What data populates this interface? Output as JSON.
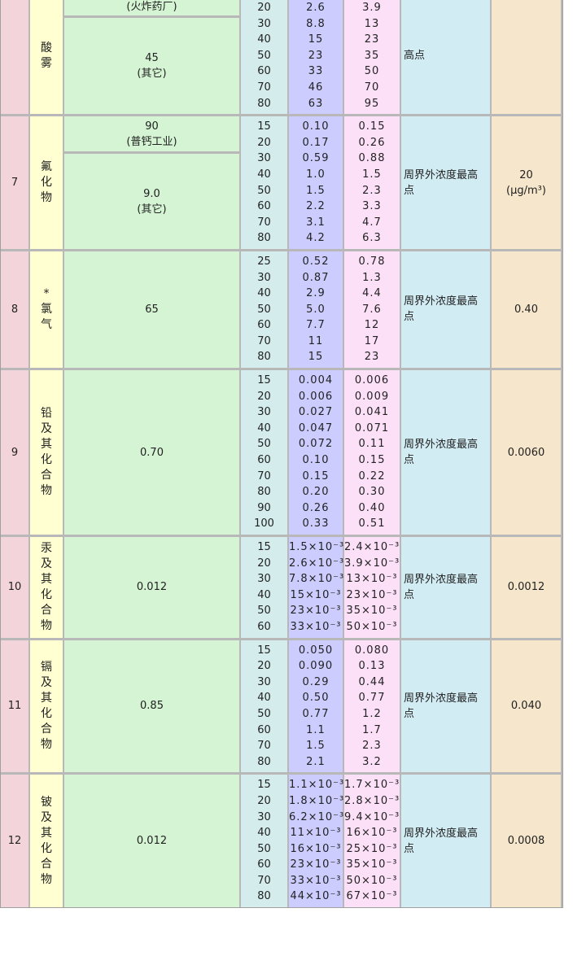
{
  "rows": [
    {
      "no": "",
      "name": "酸雾",
      "limits": [
        {
          "lines": [
            "(火炸药厂)"
          ],
          "fixed": true
        },
        {
          "lines": [
            "45",
            "(其它)"
          ]
        }
      ],
      "heights": [
        "20",
        "30",
        "40",
        "50",
        "60",
        "70",
        "80"
      ],
      "rate_a": [
        "2.6",
        "8.8",
        "15",
        "23",
        "33",
        "46",
        "63"
      ],
      "rate_b": [
        "3.9",
        "13",
        "23",
        "35",
        "50",
        "70",
        "95"
      ],
      "monitor": "高点",
      "conc": []
    },
    {
      "no": "7",
      "name": "氟化物",
      "limits": [
        {
          "lines": [
            "90",
            "(普钙工业)"
          ],
          "fixed": true
        },
        {
          "lines": [
            "9.0",
            "(其它)"
          ]
        }
      ],
      "heights": [
        "15",
        "20",
        "30",
        "40",
        "50",
        "60",
        "70",
        "80"
      ],
      "rate_a": [
        "0.10",
        "0.17",
        "0.59",
        "1.0",
        "1.5",
        "2.2",
        "3.1",
        "4.2"
      ],
      "rate_b": [
        "0.15",
        "0.26",
        "0.88",
        "1.5",
        "2.3",
        "3.3",
        "4.7",
        "6.3"
      ],
      "monitor": "周界外浓度最高点",
      "conc": [
        "20",
        "(μg/m³)"
      ]
    },
    {
      "no": "8",
      "name": "*氯气",
      "limits": [
        {
          "lines": [
            "65"
          ]
        }
      ],
      "heights": [
        "25",
        "30",
        "40",
        "50",
        "60",
        "70",
        "80"
      ],
      "rate_a": [
        "0.52",
        "0.87",
        "2.9",
        "5.0",
        "7.7",
        "11",
        "15"
      ],
      "rate_b": [
        "0.78",
        "1.3",
        "4.4",
        "7.6",
        "12",
        "17",
        "23"
      ],
      "monitor": "周界外浓度最高点",
      "conc": [
        "0.40"
      ]
    },
    {
      "no": "9",
      "name": "铅及其化合物",
      "limits": [
        {
          "lines": [
            "0.70"
          ]
        }
      ],
      "heights": [
        "15",
        "20",
        "30",
        "40",
        "50",
        "60",
        "70",
        "80",
        "90",
        "100"
      ],
      "rate_a": [
        "0.004",
        "0.006",
        "0.027",
        "0.047",
        "0.072",
        "0.10",
        "0.15",
        "0.20",
        "0.26",
        "0.33"
      ],
      "rate_b": [
        "0.006",
        "0.009",
        "0.041",
        "0.071",
        "0.11",
        "0.15",
        "0.22",
        "0.30",
        "0.40",
        "0.51"
      ],
      "monitor": "周界外浓度最高点",
      "conc": [
        "0.0060"
      ]
    },
    {
      "no": "10",
      "name": "汞及其化合物",
      "limits": [
        {
          "lines": [
            "0.012"
          ]
        }
      ],
      "heights": [
        "15",
        "20",
        "30",
        "40",
        "50",
        "60"
      ],
      "rate_a": [
        "1.5×10⁻³",
        "2.6×10⁻³",
        "7.8×10⁻³",
        "15×10⁻³",
        "23×10⁻³",
        "33×10⁻³"
      ],
      "rate_b": [
        "2.4×10⁻³",
        "3.9×10⁻³",
        "13×10⁻³",
        "23×10⁻³",
        "35×10⁻³",
        "50×10⁻³"
      ],
      "monitor": "周界外浓度最高点",
      "conc": [
        "0.0012"
      ]
    },
    {
      "no": "11",
      "name": "镉及其化合物",
      "limits": [
        {
          "lines": [
            "0.85"
          ]
        }
      ],
      "heights": [
        "15",
        "20",
        "30",
        "40",
        "50",
        "60",
        "70",
        "80"
      ],
      "rate_a": [
        "0.050",
        "0.090",
        "0.29",
        "0.50",
        "0.77",
        "1.1",
        "1.5",
        "2.1"
      ],
      "rate_b": [
        "0.080",
        "0.13",
        "0.44",
        "0.77",
        "1.2",
        "1.7",
        "2.3",
        "3.2"
      ],
      "monitor": "周界外浓度最高点",
      "conc": [
        "0.040"
      ]
    },
    {
      "no": "12",
      "name": "铍及其化合物",
      "limits": [
        {
          "lines": [
            "0.012"
          ]
        }
      ],
      "heights": [
        "15",
        "20",
        "30",
        "40",
        "50",
        "60",
        "70",
        "80"
      ],
      "rate_a": [
        "1.1×10⁻³",
        "1.8×10⁻³",
        "6.2×10⁻³",
        "11×10⁻³",
        "16×10⁻³",
        "23×10⁻³",
        "33×10⁻³",
        "44×10⁻³"
      ],
      "rate_b": [
        "1.7×10⁻³",
        "2.8×10⁻³",
        "9.4×10⁻³",
        "16×10⁻³",
        "25×10⁻³",
        "35×10⁻³",
        "50×10⁻³",
        "67×10⁻³"
      ],
      "monitor": "周界外浓度最高点",
      "conc": [
        "0.0008"
      ]
    }
  ]
}
